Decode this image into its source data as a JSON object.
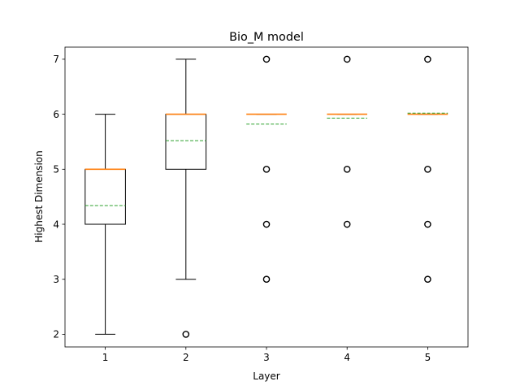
{
  "chart_data": {
    "type": "boxplot",
    "title": "Bio_M model",
    "xlabel": "Layer",
    "ylabel": "Highest Dimension",
    "categories": [
      "1",
      "2",
      "3",
      "4",
      "5"
    ],
    "ylim": [
      1.77,
      7.22
    ],
    "yticks": [
      2,
      3,
      4,
      5,
      6,
      7
    ],
    "grid": false,
    "boxes": [
      {
        "whisker_low": 2,
        "q1": 4,
        "median": 5,
        "q3": 5,
        "whisker_high": 6,
        "mean": 4.34,
        "outliers": []
      },
      {
        "whisker_low": 3,
        "q1": 5,
        "median": 6,
        "q3": 6,
        "whisker_high": 7,
        "mean": 5.52,
        "outliers": [
          2
        ]
      },
      {
        "whisker_low": 6,
        "q1": 6,
        "median": 6,
        "q3": 6,
        "whisker_high": 6,
        "mean": 5.82,
        "outliers": [
          3,
          4,
          5,
          7
        ]
      },
      {
        "whisker_low": 6,
        "q1": 6,
        "median": 6,
        "q3": 6,
        "whisker_high": 6,
        "mean": 5.93,
        "outliers": [
          4,
          5,
          7
        ]
      },
      {
        "whisker_low": 6,
        "q1": 6,
        "median": 6,
        "q3": 6,
        "whisker_high": 6,
        "mean": 6.02,
        "outliers": [
          3,
          4,
          5,
          7
        ]
      }
    ],
    "colors": {
      "box": "#000000",
      "median": "#ff7f0e",
      "mean": "#2ca02c",
      "outlier": "#000000"
    }
  }
}
